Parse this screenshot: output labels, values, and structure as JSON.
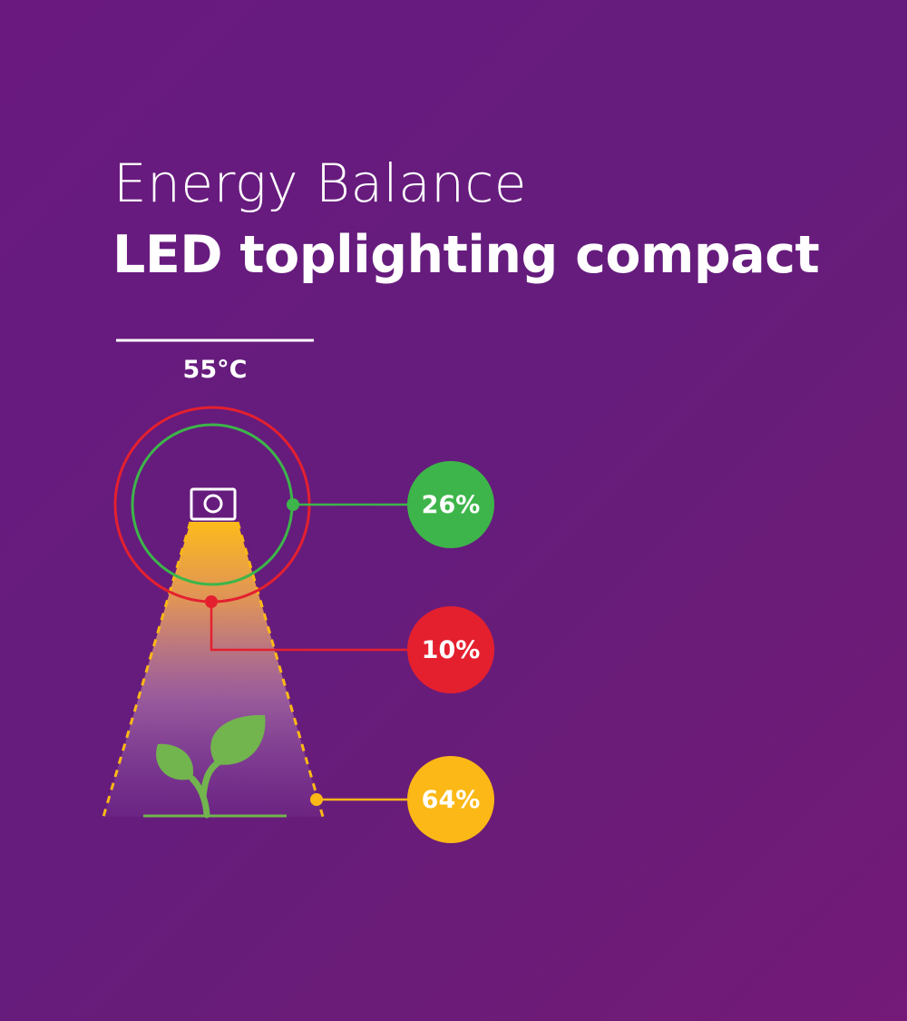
{
  "title": {
    "line1": "Energy Balance",
    "line2": "LED toplighting compact"
  },
  "temperature": "55°C",
  "energy_split": [
    {
      "value": "26%",
      "percent": 26,
      "color": "#3db54a"
    },
    {
      "value": "10%",
      "percent": 10,
      "color": "#e4202f"
    },
    {
      "value": "64%",
      "percent": 64,
      "color": "#fbb816"
    }
  ],
  "colors": {
    "background": "#661c7d",
    "green": "#3db54a",
    "red": "#e4202f",
    "amber": "#fbb816",
    "plant": "#72b44e"
  }
}
